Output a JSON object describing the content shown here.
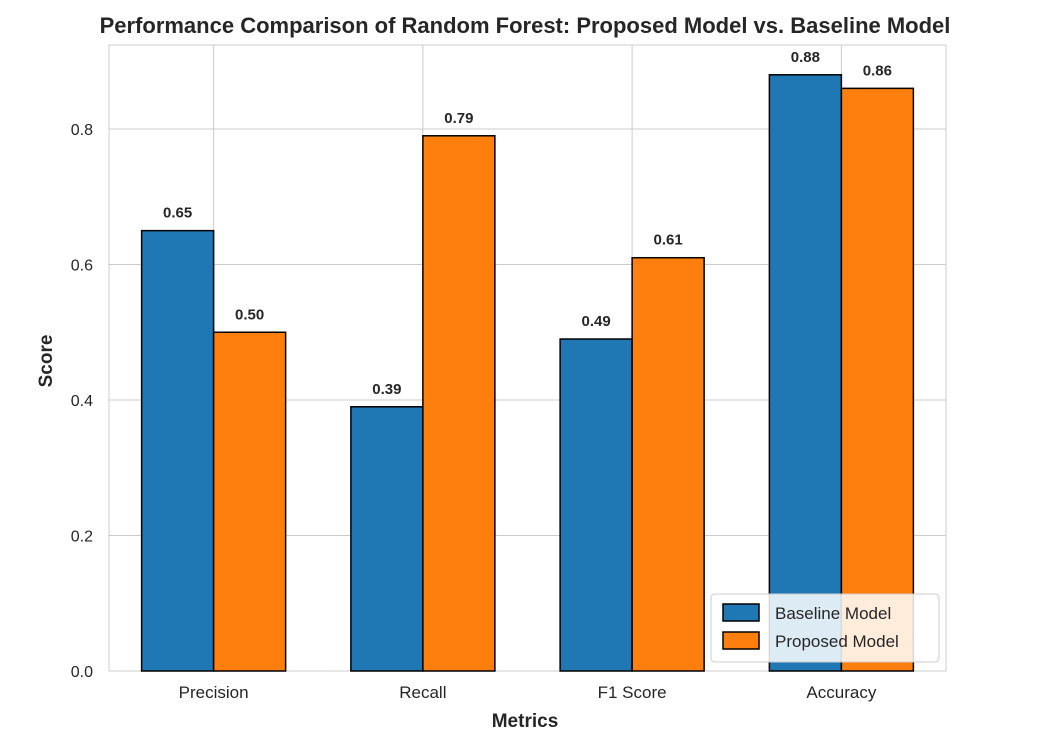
{
  "chart_data": {
    "type": "bar",
    "title": "Performance Comparison of Random Forest: Proposed Model vs. Baseline Model",
    "xlabel": "Metrics",
    "ylabel": "Score",
    "categories": [
      "Precision",
      "Recall",
      "F1 Score",
      "Accuracy"
    ],
    "series": [
      {
        "name": "Baseline Model",
        "color": "#1f77b4",
        "values": [
          0.65,
          0.39,
          0.49,
          0.88
        ],
        "labels": [
          "0.65",
          "0.39",
          "0.49",
          "0.88"
        ]
      },
      {
        "name": "Proposed Model",
        "color": "#ff7f0e",
        "values": [
          0.5,
          0.79,
          0.61,
          0.86
        ],
        "labels": [
          "0.50",
          "0.79",
          "0.61",
          "0.86"
        ]
      }
    ],
    "ylim": [
      0,
      0.924
    ],
    "yticks": [
      0.0,
      0.2,
      0.4,
      0.6,
      0.8
    ],
    "ytick_labels": [
      "0.0",
      "0.2",
      "0.4",
      "0.6",
      "0.8"
    ],
    "grid": true,
    "legend_position": "lower-right"
  }
}
